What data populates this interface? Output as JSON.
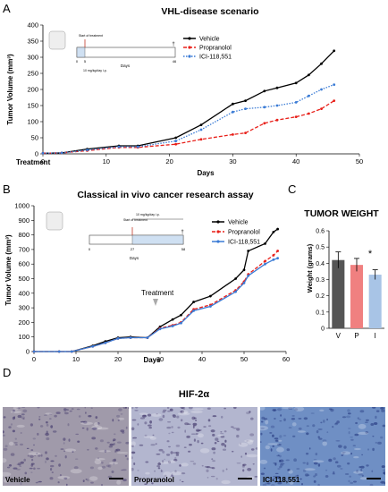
{
  "panels": {
    "a": "A",
    "b": "B",
    "c": "C",
    "d": "D"
  },
  "chart_data": [
    {
      "type": "line",
      "title": "VHL-disease scenario",
      "xlabel": "Days",
      "ylabel": "Tumor Volume (mm³)",
      "xlim": [
        0,
        50
      ],
      "ylim": [
        0,
        400
      ],
      "xticks": [
        "0",
        "10",
        "20",
        "30",
        "40",
        "50"
      ],
      "yticks": [
        "0",
        "50",
        "100",
        "150",
        "200",
        "250",
        "300",
        "350",
        "400"
      ],
      "x": [
        0,
        3,
        7,
        12,
        15,
        21,
        25,
        30,
        32,
        35,
        37,
        40,
        42,
        44,
        46
      ],
      "series": [
        {
          "name": "Vehicle",
          "color": "#000000",
          "style": "solid",
          "values": [
            2,
            3,
            15,
            25,
            25,
            50,
            90,
            155,
            165,
            195,
            205,
            220,
            245,
            280,
            320
          ]
        },
        {
          "name": "Propranolol",
          "color": "#e8201a",
          "style": "dashed",
          "values": [
            2,
            3,
            10,
            20,
            20,
            30,
            45,
            60,
            65,
            95,
            105,
            115,
            125,
            140,
            165
          ]
        },
        {
          "name": "ICI-118,551",
          "color": "#3a7bd5",
          "style": "dotted",
          "values": [
            2,
            3,
            12,
            22,
            22,
            40,
            75,
            130,
            140,
            145,
            150,
            160,
            180,
            200,
            215
          ]
        }
      ],
      "treatment_label": "Treatment",
      "inset": {
        "start_label": "Start of treatment",
        "dose": "10 mg/kg/day i.p.",
        "ticks": [
          "0",
          "5",
          "46"
        ],
        "xlabel": "Days",
        "dagger": "†"
      }
    },
    {
      "type": "line",
      "title": "Classical in vivo cancer research assay",
      "xlabel": "Days",
      "ylabel": "Tumor Volume (mm³)",
      "xlim": [
        0,
        60
      ],
      "ylim": [
        0,
        1000
      ],
      "xticks": [
        "0",
        "10",
        "20",
        "30",
        "40",
        "50",
        "60"
      ],
      "yticks": [
        "0",
        "100",
        "200",
        "300",
        "400",
        "500",
        "600",
        "700",
        "800",
        "900",
        "1000"
      ],
      "x": [
        0,
        6,
        9,
        14,
        17,
        20,
        23,
        27,
        30,
        33,
        35,
        38,
        42,
        48,
        50,
        51,
        55,
        57,
        58
      ],
      "series": [
        {
          "name": "Vehicle",
          "color": "#000000",
          "style": "solid",
          "values": [
            0,
            0,
            0,
            40,
            70,
            95,
            100,
            95,
            170,
            220,
            250,
            340,
            380,
            500,
            560,
            690,
            740,
            820,
            840
          ]
        },
        {
          "name": "Propranolol",
          "color": "#e8201a",
          "style": "dashed",
          "values": [
            0,
            0,
            0,
            35,
            60,
            90,
            95,
            95,
            160,
            180,
            200,
            290,
            320,
            420,
            480,
            530,
            620,
            660,
            690
          ]
        },
        {
          "name": "ICI-118,551",
          "color": "#3a7bd5",
          "style": "solid",
          "values": [
            0,
            0,
            0,
            35,
            60,
            90,
            95,
            95,
            155,
            175,
            195,
            280,
            310,
            410,
            470,
            520,
            600,
            630,
            640
          ]
        }
      ],
      "annotation": "Treatment",
      "inset": {
        "start_label": "Start of treatment",
        "dose": "10 mg/kg/day i.p.",
        "ticks": [
          "0",
          "27",
          "58"
        ],
        "xlabel": "Days",
        "dagger": "†"
      }
    },
    {
      "type": "bar",
      "title": "TUMOR WEIGHT",
      "ylabel": "Weight (grams)",
      "categories": [
        "V",
        "P",
        "I"
      ],
      "values": [
        0.42,
        0.39,
        0.33
      ],
      "errors": [
        0.05,
        0.04,
        0.03
      ],
      "colors": [
        "#555555",
        "#f08080",
        "#a8c4e6"
      ],
      "ylim": [
        0,
        0.6
      ],
      "yticks": [
        "0",
        "0.1",
        "0.2",
        "0.3",
        "0.4",
        "0.5",
        "0.6"
      ],
      "annotation": "*"
    }
  ],
  "histology": {
    "title": "HIF-2α",
    "images": [
      {
        "label": "Vehicle",
        "color": "#a09aaa"
      },
      {
        "label": "Propranolol",
        "color": "#b3b6cf"
      },
      {
        "label": "ICI-118,551",
        "color": "#6f8fc4"
      }
    ]
  }
}
